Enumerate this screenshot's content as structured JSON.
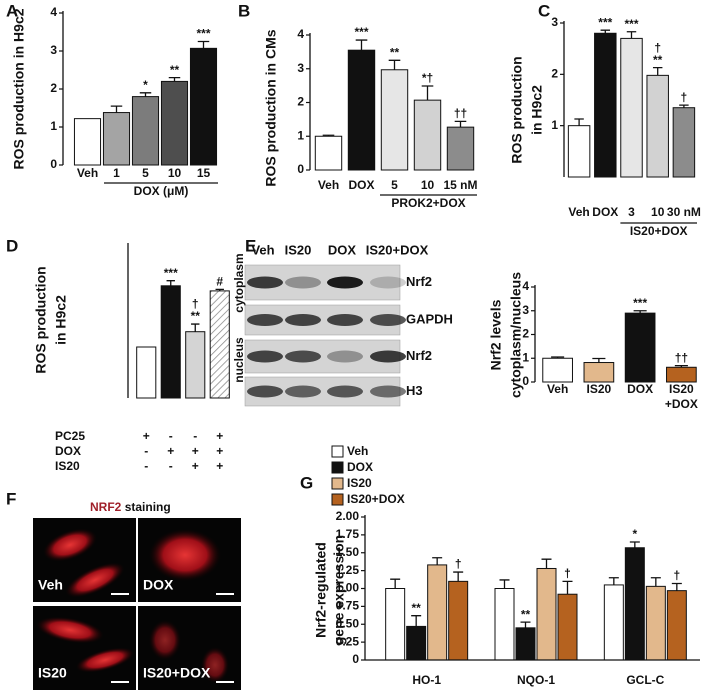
{
  "chart_data": [
    {
      "panel": "A",
      "type": "bar",
      "ylabel": "ROS production in H9c2",
      "categories": [
        "Veh",
        "1",
        "5",
        "10",
        "15"
      ],
      "group_label": "DOX (μM)",
      "values": [
        1.22,
        1.38,
        1.8,
        2.2,
        3.07
      ],
      "errors": [
        0,
        0.17,
        0.1,
        0.1,
        0.18
      ],
      "colors": [
        "#ffffff",
        "#a4a4a4",
        "#7c7c7c",
        "#4e4e4e",
        "#111111"
      ],
      "annotations": [
        null,
        null,
        "*",
        "**",
        "***"
      ],
      "ylim": [
        0,
        4
      ],
      "yticks": [
        0,
        1,
        2,
        3,
        4
      ]
    },
    {
      "panel": "B",
      "type": "bar",
      "ylabel": "ROS production in CMs",
      "categories": [
        "Veh",
        "DOX",
        "5",
        "10",
        "15 nM"
      ],
      "group_label": "PROK2+DOX",
      "values": [
        1.0,
        3.55,
        2.97,
        2.07,
        1.27
      ],
      "errors": [
        0.03,
        0.3,
        0.28,
        0.42,
        0.17
      ],
      "colors": [
        "#ffffff",
        "#111111",
        "#e6e6e6",
        "#d2d2d2",
        "#8c8c8c"
      ],
      "annotations": [
        null,
        "***",
        "**",
        "*†",
        "††"
      ],
      "ylim": [
        0,
        4
      ],
      "yticks": [
        0,
        1,
        2,
        3,
        4
      ]
    },
    {
      "panel": "C",
      "type": "bar",
      "ylabel": [
        "ROS production",
        "in H9c2"
      ],
      "categories": [
        "Veh",
        "DOX",
        "3",
        "10",
        "30 nM"
      ],
      "group_label": "IS20+DOX",
      "values": [
        1.0,
        2.8,
        2.7,
        1.98,
        1.35
      ],
      "errors": [
        0.13,
        0.06,
        0.13,
        0.15,
        0.05
      ],
      "colors": [
        "#ffffff",
        "#111111",
        "#e6e6e6",
        "#d2d2d2",
        "#8c8c8c"
      ],
      "annotations": [
        null,
        "***",
        "***",
        [
          "†",
          "**"
        ],
        "†"
      ],
      "ylim": [
        0,
        3
      ],
      "yticks": [
        1,
        2,
        3
      ]
    },
    {
      "panel": "D",
      "type": "bar",
      "ylabel": [
        "ROS production",
        "in H9c2"
      ],
      "categories": [
        null,
        null,
        null,
        null
      ],
      "values": [
        1.0,
        2.2,
        1.3,
        2.1
      ],
      "errors": [
        0,
        0.1,
        0.15,
        0.03
      ],
      "colors": [
        "#ffffff",
        "#111111",
        "#d4d4d4",
        "#ffffff"
      ],
      "patterns": [
        null,
        null,
        null,
        "hatch"
      ],
      "annotations": [
        null,
        "***",
        [
          "†",
          "**"
        ],
        "#"
      ],
      "ylim": [
        0,
        3
      ],
      "conditions": [
        {
          "name": "PC25",
          "marks": [
            "+",
            "-",
            "-",
            "+"
          ]
        },
        {
          "name": "DOX",
          "marks": [
            "-",
            "+",
            "+",
            "+"
          ]
        },
        {
          "name": "IS20",
          "marks": [
            "-",
            "-",
            "+",
            "+"
          ]
        }
      ]
    },
    {
      "panel": "E",
      "type": "bar",
      "ylabel": [
        "Nrf2 levels",
        "cytoplasm/nucleus"
      ],
      "categories": [
        "Veh",
        "IS20",
        "DOX",
        [
          "IS20",
          "+DOX"
        ]
      ],
      "values": [
        1.0,
        0.82,
        2.9,
        0.62
      ],
      "errors": [
        0.05,
        0.17,
        0.1,
        0.07
      ],
      "colors": [
        "#ffffff",
        "#e2b88c",
        "#111111",
        "#b5621f"
      ],
      "annotations": [
        null,
        null,
        "***",
        "††"
      ],
      "ylim": [
        0,
        4
      ],
      "yticks": [
        0,
        1,
        2,
        3,
        4
      ]
    },
    {
      "panel": "G",
      "type": "grouped-bar",
      "ylabel": [
        "Nrf2-regulated",
        "gene expression"
      ],
      "categories": [
        "HO-1",
        "NQO-1",
        "GCL-C"
      ],
      "series": [
        {
          "name": "Veh",
          "color": "#ffffff",
          "values": [
            1.0,
            1.0,
            1.05
          ],
          "errors": [
            0.13,
            0.12,
            0.1
          ],
          "annotations": [
            null,
            null,
            null
          ]
        },
        {
          "name": "DOX",
          "color": "#111111",
          "values": [
            0.47,
            0.45,
            1.57
          ],
          "errors": [
            0.15,
            0.08,
            0.08
          ],
          "annotations": [
            "**",
            "**",
            "*"
          ]
        },
        {
          "name": "IS20",
          "color": "#e2b88c",
          "values": [
            1.33,
            1.28,
            1.03
          ],
          "errors": [
            0.1,
            0.13,
            0.12
          ],
          "annotations": [
            null,
            null,
            null
          ]
        },
        {
          "name": "IS20+DOX",
          "color": "#b5621f",
          "values": [
            1.1,
            0.92,
            0.97
          ],
          "errors": [
            0.13,
            0.18,
            0.1
          ],
          "annotations": [
            "†",
            "†",
            "†"
          ]
        }
      ],
      "ylim": [
        0,
        2
      ],
      "yticks": [
        0,
        0.25,
        {
          "value": 0.5,
          "label": "0.50"
        },
        0.75,
        {
          "value": 1,
          "label": "1.00"
        },
        1.25,
        {
          "value": 1.5,
          "label": "1.50"
        },
        1.75,
        {
          "value": 2,
          "label": "2.00"
        }
      ]
    }
  ],
  "blot": {
    "panel": "E",
    "lanes": [
      "Veh",
      "IS20",
      "DOX",
      "IS20+DOX"
    ],
    "rows": [
      "Nrf2",
      "GAPDH",
      "Nrf2",
      "H3"
    ],
    "fractions": [
      "cytoplasm",
      "nucleus"
    ]
  },
  "staining": {
    "panel": "F",
    "title_marker": "NRF2",
    "title_rest": "staining",
    "labels": [
      "Veh",
      "DOX",
      "IS20",
      "IS20+DOX"
    ]
  }
}
